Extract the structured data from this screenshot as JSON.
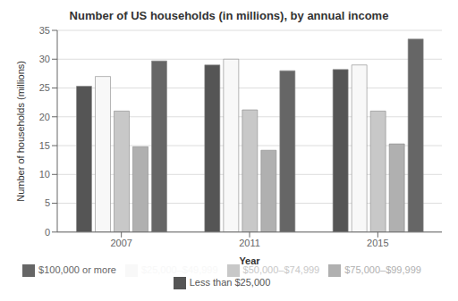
{
  "chart_data": {
    "type": "bar",
    "title": "Number of US households (in millions), by annual income",
    "xlabel": "Year",
    "ylabel": "Number of households (millions)",
    "categories": [
      "2007",
      "2011",
      "2015"
    ],
    "series": [
      {
        "name": "Less than $25,000",
        "color": "#555555",
        "values": [
          25.3,
          29.0,
          28.2
        ]
      },
      {
        "name": "$25,000–$49,999",
        "color": "#f8f8f8",
        "values": [
          27.0,
          30.0,
          29.0
        ]
      },
      {
        "name": "$50,000–$74,999",
        "color": "#c8c8c8",
        "values": [
          21.0,
          21.2,
          21.0
        ]
      },
      {
        "name": "$75,000–$99,999",
        "color": "#b0b0b0",
        "values": [
          14.8,
          14.2,
          15.3
        ]
      },
      {
        "name": "$100,000 or more",
        "color": "#666666",
        "values": [
          29.7,
          28.0,
          33.5
        ]
      }
    ],
    "ylim": [
      0,
      35
    ],
    "yticks": [
      0,
      5,
      10,
      15,
      20,
      25,
      30,
      35
    ],
    "grid": true,
    "legend": "bottom"
  }
}
